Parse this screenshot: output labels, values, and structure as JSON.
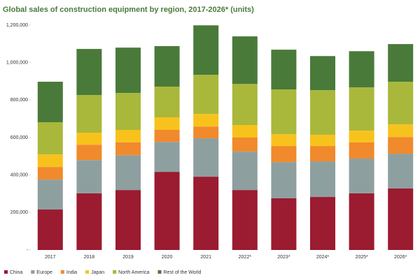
{
  "chart_data": {
    "type": "stacked_bar",
    "title": "Global sales of construction equipment by region, 2017-2026* (units)",
    "categories": [
      "2017",
      "2018",
      "2019",
      "2020",
      "2021",
      "2022*",
      "2023*",
      "2024*",
      "2025*",
      "2026*"
    ],
    "series": [
      {
        "name": "China",
        "color": "#9b1b30",
        "values": [
          216000,
          302000,
          320000,
          417000,
          391000,
          320000,
          276000,
          283000,
          302000,
          328000
        ]
      },
      {
        "name": "Europe",
        "color": "#8e9fa0",
        "values": [
          160000,
          178000,
          186000,
          160000,
          205000,
          205000,
          193000,
          190000,
          186000,
          186000
        ]
      },
      {
        "name": "India",
        "color": "#f08a2c",
        "values": [
          67000,
          82000,
          68000,
          64000,
          63000,
          75000,
          86000,
          82000,
          86000,
          89000
        ]
      },
      {
        "name": "Japan",
        "color": "#f8c21c",
        "values": [
          67000,
          64000,
          67000,
          67000,
          67000,
          67000,
          63000,
          60000,
          63000,
          67000
        ]
      },
      {
        "name": "North America",
        "color": "#a9b83b",
        "values": [
          172000,
          201000,
          197000,
          164000,
          209000,
          219000,
          239000,
          238000,
          231000,
          228000
        ]
      },
      {
        "name": "Rest of the World",
        "color": "#4a7a3a",
        "values": [
          216000,
          246000,
          242000,
          216000,
          264000,
          254000,
          212000,
          182000,
          193000,
          201000
        ]
      }
    ],
    "ylim": [
      0,
      1200000
    ],
    "yticks": [
      {
        "value": 0,
        "label": "-"
      },
      {
        "value": 200000,
        "label": "200,000"
      },
      {
        "value": 400000,
        "label": "400,000"
      },
      {
        "value": 600000,
        "label": "600,000"
      },
      {
        "value": 800000,
        "label": "800,000"
      },
      {
        "value": 1000000,
        "label": "1,000,000"
      },
      {
        "value": 1200000,
        "label": "1,200,000"
      }
    ],
    "legend": "bottom"
  }
}
